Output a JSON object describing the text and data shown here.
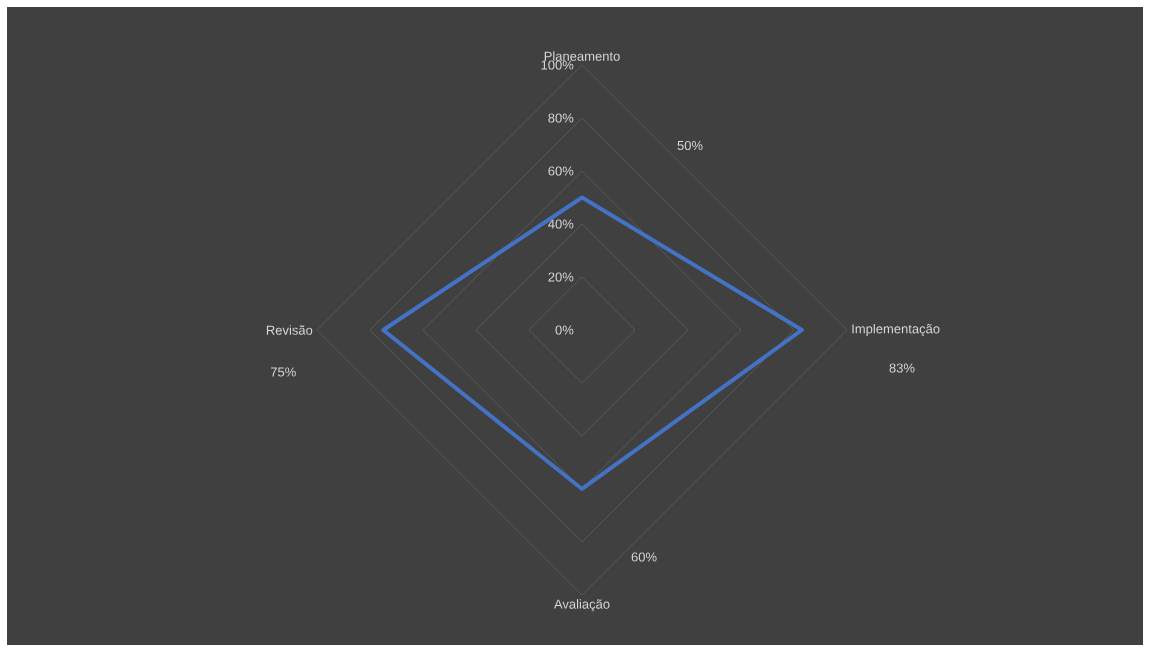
{
  "chart_data": {
    "type": "radar",
    "categories": [
      "Planeamento",
      "Implementação",
      "Avaliação",
      "Revisão"
    ],
    "series": [
      {
        "color": "#4472c4",
        "values": [
          50,
          83,
          60,
          75
        ]
      }
    ],
    "ylim": [
      0,
      100
    ],
    "yticks": [
      {
        "value": 0,
        "label": "0%"
      },
      {
        "value": 20,
        "label": "20%"
      },
      {
        "value": 40,
        "label": "40%"
      },
      {
        "value": 60,
        "label": "60%"
      },
      {
        "value": 80,
        "label": "80%"
      },
      {
        "value": 100,
        "label": "100%"
      }
    ],
    "value_labels": [
      "50%",
      "83%",
      "60%",
      "75%"
    ],
    "grid": true,
    "marker": "none",
    "line_style": "solid"
  }
}
